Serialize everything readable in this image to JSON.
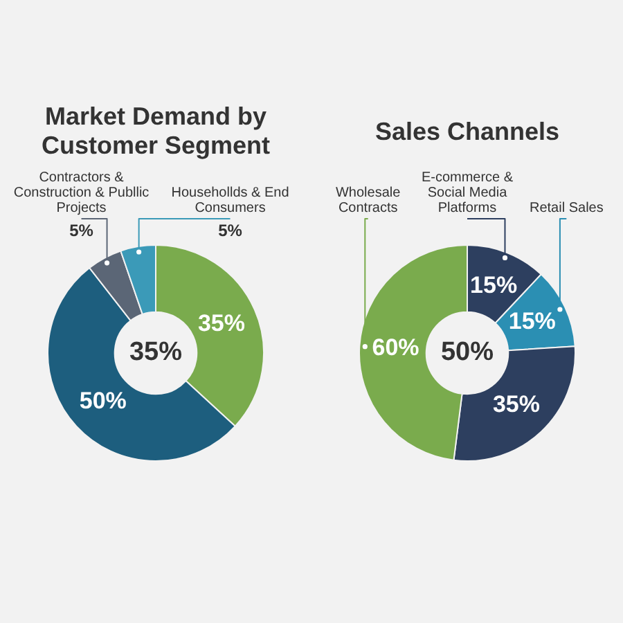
{
  "chart_data": [
    {
      "type": "donut",
      "title": "Market Demand by Customer Segment",
      "categories": [
        null,
        null,
        "Contractors & Construction & Publlic Projects",
        "Househollds & End Consumers"
      ],
      "values": [
        35,
        50,
        5,
        5
      ],
      "colors": [
        "#7aab4d",
        "#1d5e7e",
        "#5b6676",
        "#3b9ab8"
      ],
      "value_labels": [
        "35%",
        "50%",
        "5%",
        "5%"
      ],
      "annotations": [
        "35%"
      ]
    },
    {
      "type": "donut",
      "title": "Sales Channels",
      "categories": [
        "E-commerce & Social Media Platforms",
        "Retail Sales",
        null,
        "Wholesale Contracts"
      ],
      "values": [
        15,
        15,
        35,
        60
      ],
      "colors": [
        "#2d3f5f",
        "#2b8fb3",
        "#2d3f5f",
        "#7aab4d"
      ],
      "value_labels": [
        "15%",
        "15%",
        "35%",
        "60%"
      ],
      "annotations": [
        "50%"
      ]
    }
  ]
}
